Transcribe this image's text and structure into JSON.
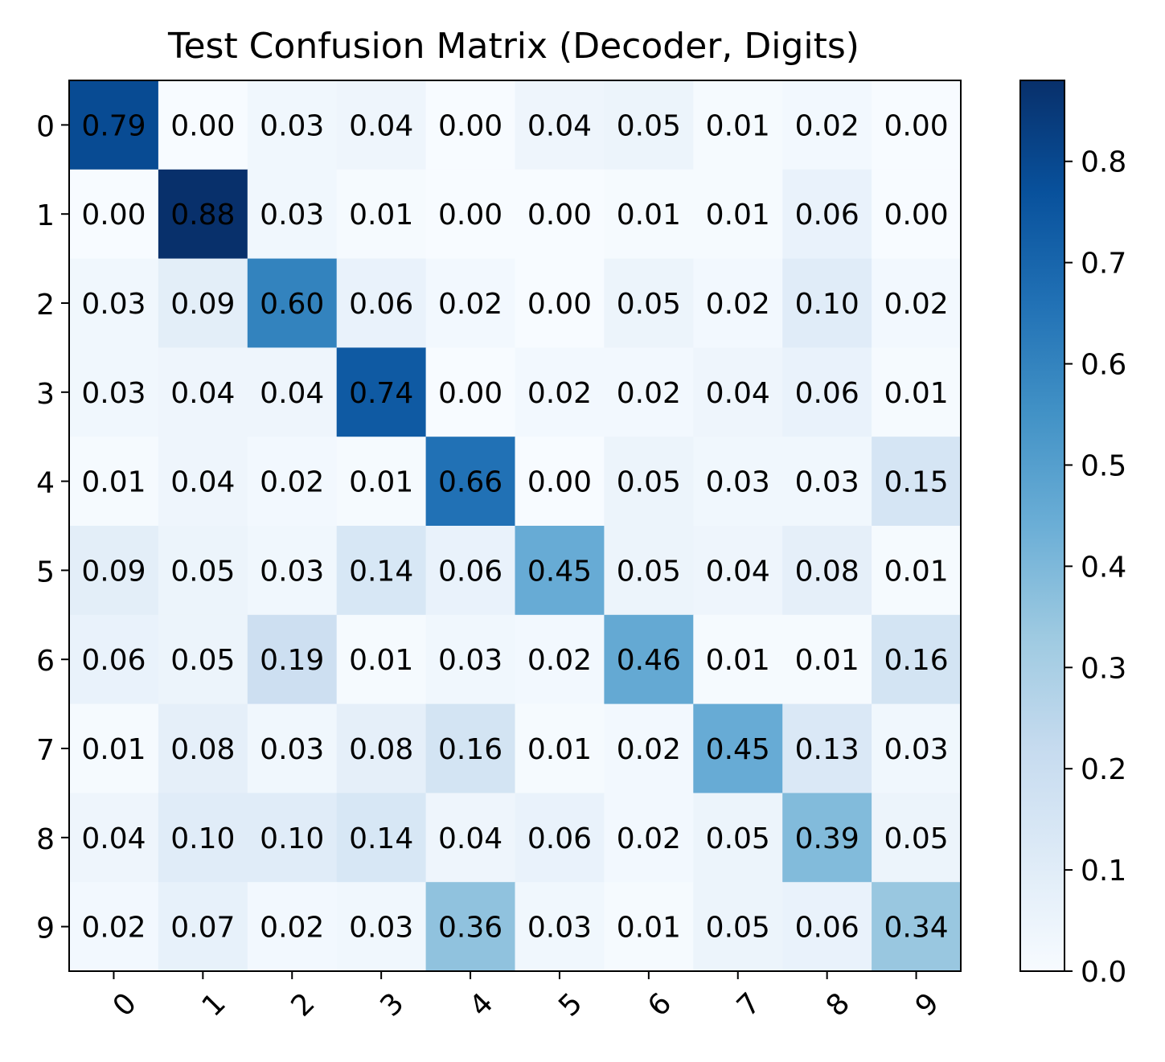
{
  "chart_data": {
    "type": "heatmap",
    "title": "Test Confusion Matrix (Decoder, Digits)",
    "xlabel": "",
    "ylabel": "",
    "row_labels": [
      "0",
      "1",
      "2",
      "3",
      "4",
      "5",
      "6",
      "7",
      "8",
      "9"
    ],
    "col_labels": [
      "0",
      "1",
      "2",
      "3",
      "4",
      "5",
      "6",
      "7",
      "8",
      "9"
    ],
    "values": [
      [
        0.79,
        0.0,
        0.03,
        0.04,
        0.0,
        0.04,
        0.05,
        0.01,
        0.02,
        0.0
      ],
      [
        0.0,
        0.88,
        0.03,
        0.01,
        0.0,
        0.0,
        0.01,
        0.01,
        0.06,
        0.0
      ],
      [
        0.03,
        0.09,
        0.6,
        0.06,
        0.02,
        0.0,
        0.05,
        0.02,
        0.1,
        0.02
      ],
      [
        0.03,
        0.04,
        0.04,
        0.74,
        0.0,
        0.02,
        0.02,
        0.04,
        0.06,
        0.01
      ],
      [
        0.01,
        0.04,
        0.02,
        0.01,
        0.66,
        0.0,
        0.05,
        0.03,
        0.03,
        0.15
      ],
      [
        0.09,
        0.05,
        0.03,
        0.14,
        0.06,
        0.45,
        0.05,
        0.04,
        0.08,
        0.01
      ],
      [
        0.06,
        0.05,
        0.19,
        0.01,
        0.03,
        0.02,
        0.46,
        0.01,
        0.01,
        0.16
      ],
      [
        0.01,
        0.08,
        0.03,
        0.08,
        0.16,
        0.01,
        0.02,
        0.45,
        0.13,
        0.03
      ],
      [
        0.04,
        0.1,
        0.1,
        0.14,
        0.04,
        0.06,
        0.02,
        0.05,
        0.39,
        0.05
      ],
      [
        0.02,
        0.07,
        0.02,
        0.03,
        0.36,
        0.03,
        0.01,
        0.05,
        0.06,
        0.34
      ]
    ],
    "colormap": "Blues",
    "color_range": [
      0.0,
      0.88
    ],
    "colorbar_ticks": [
      0.0,
      0.1,
      0.2,
      0.3,
      0.4,
      0.5,
      0.6,
      0.7,
      0.8
    ],
    "colorbar_tick_labels": [
      "0.0",
      "0.1",
      "0.2",
      "0.3",
      "0.4",
      "0.5",
      "0.6",
      "0.7",
      "0.8"
    ],
    "x_tick_rotation": 45,
    "grid": false
  }
}
